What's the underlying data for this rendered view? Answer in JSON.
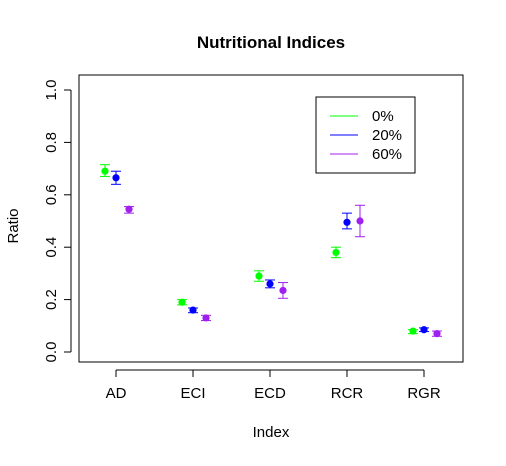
{
  "chart_data": {
    "type": "scatter",
    "title": "Nutritional Indices",
    "xlabel": "Index",
    "ylabel": "Ratio",
    "categories": [
      "AD",
      "ECI",
      "ECD",
      "RCR",
      "RGR"
    ],
    "ylim": [
      0,
      1.0
    ],
    "yticks": [
      "0.0",
      "0.2",
      "0.4",
      "0.6",
      "0.8",
      "1.0"
    ],
    "grid": false,
    "legend_position": "top-right",
    "series": [
      {
        "name": "0%",
        "color": "#00ff00",
        "values": [
          0.69,
          0.19,
          0.29,
          0.38,
          0.08
        ],
        "err_low": [
          0.67,
          0.18,
          0.27,
          0.36,
          0.07
        ],
        "err_high": [
          0.715,
          0.2,
          0.31,
          0.4,
          0.085
        ]
      },
      {
        "name": "20%",
        "color": "#0000ff",
        "values": [
          0.665,
          0.16,
          0.26,
          0.495,
          0.085
        ],
        "err_low": [
          0.64,
          0.15,
          0.245,
          0.47,
          0.078
        ],
        "err_high": [
          0.69,
          0.168,
          0.275,
          0.53,
          0.092
        ]
      },
      {
        "name": "60%",
        "color": "#a020f0",
        "values": [
          0.545,
          0.13,
          0.235,
          0.5,
          0.07
        ],
        "err_low": [
          0.53,
          0.12,
          0.205,
          0.44,
          0.06
        ],
        "err_high": [
          0.555,
          0.14,
          0.265,
          0.56,
          0.08
        ]
      }
    ]
  }
}
